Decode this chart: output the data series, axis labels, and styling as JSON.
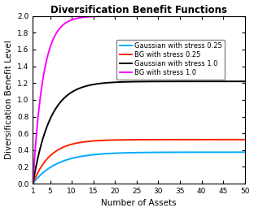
{
  "title": "Diversification Benefit Functions",
  "xlabel": "Number of Assets",
  "ylabel": "Diversification Benefit Level",
  "xlim": [
    1,
    50
  ],
  "ylim": [
    0,
    2
  ],
  "xticks": [
    1,
    5,
    10,
    15,
    20,
    25,
    30,
    35,
    40,
    45,
    50
  ],
  "yticks": [
    0,
    0.2,
    0.4,
    0.6,
    0.8,
    1.0,
    1.2,
    1.4,
    1.6,
    1.8,
    2.0
  ],
  "series": [
    {
      "label": "Gaussian with stress 0.25",
      "color": "#00AAFF",
      "asymptote": 0.375,
      "speed": 0.18
    },
    {
      "label": "BG with stress 0.25",
      "color": "#FF2200",
      "asymptote": 0.525,
      "speed": 0.25
    },
    {
      "label": "Gaussian with stress 1.0",
      "color": "#000000",
      "asymptote": 1.22,
      "speed": 0.25
    },
    {
      "label": "BG with stress 1.0",
      "color": "#FF00FF",
      "asymptote": 2.0,
      "speed": 0.42
    }
  ],
  "legend_fontsize": 6.0,
  "title_fontsize": 8.5,
  "label_fontsize": 7.5,
  "tick_fontsize": 6.5,
  "linewidth": 1.4,
  "background_color": "#FFFFFF"
}
